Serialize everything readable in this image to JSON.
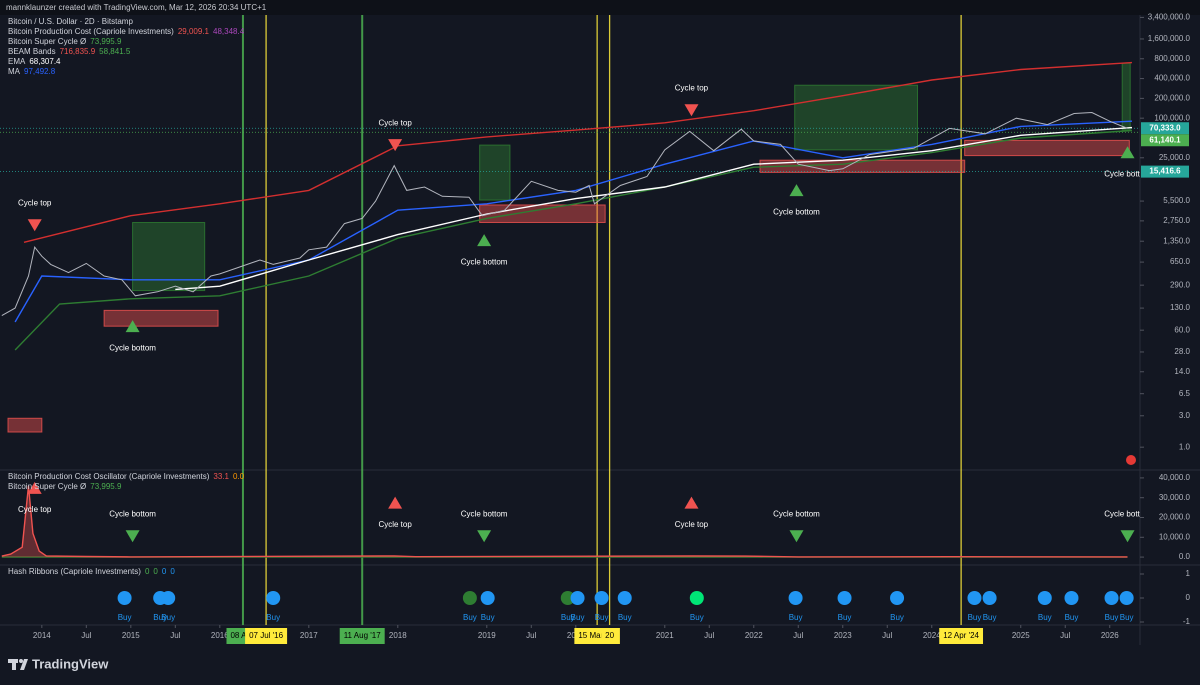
{
  "header": "mannklaunzer created with TradingView.com, Mar 12, 2026 20:34 UTC+1",
  "footer": {
    "brand": "TradingView"
  },
  "time_axis": {
    "xlim": [
      2013.53,
      2026.34
    ],
    "xticks": [
      2014,
      {
        "value": 2014.5,
        "label": "Jul"
      },
      2015,
      {
        "value": 2015.5,
        "label": "Jul"
      },
      2016,
      2017,
      2018,
      2019,
      {
        "value": 2019.5,
        "label": "Jul"
      },
      2020,
      2021,
      {
        "value": 2021.5,
        "label": "Jul"
      },
      2022,
      {
        "value": 2022.5,
        "label": "Jul"
      },
      2023,
      {
        "value": 2023.5,
        "label": "Jul"
      },
      2024,
      2025,
      {
        "value": 2025.5,
        "label": "Jul"
      },
      2026
    ],
    "markers": [
      {
        "x": 2016.26,
        "label": "08 Aug",
        "color": "#4caf50"
      },
      {
        "x": 2016.52,
        "label": "07 Jul '16",
        "color": "#ffeb3b"
      },
      {
        "x": 2017.6,
        "label": "11 Aug '17",
        "color": "#4caf50"
      },
      {
        "x": 2020.24,
        "label": "15 Mar '20",
        "color": "#ffeb3b"
      },
      {
        "x": 2020.38,
        "label": "20",
        "color": "#ffeb3b"
      },
      {
        "x": 2024.33,
        "label": "12 Apr '24",
        "color": "#ffeb3b"
      }
    ]
  },
  "chart_data": [
    {
      "type": "line",
      "log_scale": true,
      "legend": [
        {
          "name": "Bitcoin / U.S. Dollar · 2D · Bitstamp"
        },
        {
          "name": "Bitcoin Production Cost (Capriole Investments)",
          "readings": [
            "29,009.1",
            "48,348.4"
          ],
          "colors": [
            "#f05350",
            "#ab47bc"
          ]
        },
        {
          "name": "Bitcoin Super Cycle  Ø",
          "readings": [
            "73,995.9"
          ],
          "colors": [
            "#4caf50"
          ]
        },
        {
          "name": "BEAM Bands",
          "readings": [
            "716,835.9",
            "58,841.5"
          ],
          "colors": [
            "#f05350",
            "#4caf50"
          ]
        },
        {
          "name": "EMA",
          "readings": [
            "68,307.4"
          ],
          "colors": [
            "#ffffff"
          ]
        },
        {
          "name": "MA",
          "readings": [
            "97,492.8"
          ],
          "colors": [
            "#2962ff"
          ]
        }
      ],
      "ylim": [
        0.45,
        3700000
      ],
      "yticks": [
        {
          "value": 3400000,
          "label": "3,400,000.0"
        },
        {
          "value": 1600000,
          "label": "1,600,000.0"
        },
        {
          "value": 800000,
          "label": "800,000.0"
        },
        {
          "value": 400000,
          "label": "400,000.0"
        },
        {
          "value": 200000,
          "label": "200,000.0"
        },
        {
          "value": 100000,
          "label": "100,000.0"
        },
        {
          "value": 25000,
          "label": "25,000.0"
        },
        {
          "value": 5500,
          "label": "5,500.0"
        },
        {
          "value": 2750,
          "label": "2,750.0"
        },
        {
          "value": 1350,
          "label": "1,350.0"
        },
        {
          "value": 650,
          "label": "650.0"
        },
        {
          "value": 290,
          "label": "290.0"
        },
        {
          "value": 130,
          "label": "130.0"
        },
        {
          "value": 60,
          "label": "60.0"
        },
        {
          "value": 28,
          "label": "28.0"
        },
        {
          "value": 14,
          "label": "14.0"
        },
        {
          "value": 6.5,
          "label": "6.5"
        },
        {
          "value": 3,
          "label": "3.0"
        },
        {
          "value": 1,
          "label": "1.0"
        }
      ],
      "zones": [
        {
          "x0": 2015.02,
          "x1": 2015.83,
          "y0": 240,
          "y1": 2600,
          "color": "#2e7d32"
        },
        {
          "x0": 2018.92,
          "x1": 2019.26,
          "y0": 5700,
          "y1": 39000,
          "color": "#2e7d32"
        },
        {
          "x0": 2022.46,
          "x1": 2023.84,
          "y0": 33000,
          "y1": 317000,
          "color": "#2e7d32"
        },
        {
          "x0": 2026.14,
          "x1": 2026.23,
          "y0": 66000,
          "y1": 685000,
          "color": "#2e7d32"
        },
        {
          "x0": 2013.62,
          "x1": 2014.0,
          "y0": 1.7,
          "y1": 2.75,
          "color": "#f05350"
        },
        {
          "x0": 2014.7,
          "x1": 2015.98,
          "y0": 69,
          "y1": 120,
          "color": "#f05350"
        },
        {
          "x0": 2018.92,
          "x1": 2020.33,
          "y0": 2600,
          "y1": 4800,
          "color": "#f05350"
        },
        {
          "x0": 2022.07,
          "x1": 2024.37,
          "y0": 15000,
          "y1": 23000,
          "color": "#f05350"
        },
        {
          "x0": 2024.37,
          "x1": 2026.22,
          "y0": 27000,
          "y1": 46000,
          "color": "#f05350"
        }
      ],
      "series": [
        {
          "color": "#d32f2f",
          "x": [
            2013.8,
            2015,
            2016,
            2017,
            2018,
            2019,
            2020,
            2021,
            2022,
            2023,
            2024,
            2025,
            2026.25
          ],
          "values": [
            1300,
            3300,
            5000,
            8000,
            38000,
            52000,
            66000,
            85000,
            130000,
            220000,
            380000,
            550000,
            700000
          ]
        },
        {
          "color": "#2e7d32",
          "x": [
            2013.7,
            2014.2,
            2015,
            2016,
            2017,
            2018,
            2019,
            2020,
            2021,
            2022,
            2023,
            2024,
            2025,
            2026.25
          ],
          "values": [
            30,
            150,
            180,
            200,
            400,
            1500,
            3000,
            5000,
            9000,
            18000,
            20000,
            30000,
            50000,
            65000
          ]
        },
        {
          "color": "#2962ff",
          "x": [
            2013.7,
            2014,
            2015,
            2016,
            2017,
            2018,
            2019,
            2020,
            2021,
            2022,
            2023,
            2024,
            2025,
            2026.25
          ],
          "values": [
            80,
            400,
            350,
            350,
            700,
            4000,
            5000,
            8000,
            20000,
            45000,
            25000,
            40000,
            75000,
            90000
          ]
        },
        {
          "color": "#ffffff",
          "x": [
            2015.5,
            2016,
            2017,
            2018,
            2019,
            2020,
            2021,
            2022,
            2023,
            2024,
            2025,
            2026.25
          ],
          "values": [
            250,
            280,
            700,
            1700,
            3500,
            6000,
            9000,
            20000,
            23000,
            32000,
            55000,
            72000
          ]
        },
        {
          "color": "#b2b5be",
          "x": [
            2013.55,
            2013.7,
            2013.85,
            2013.92,
            2014.0,
            2014.1,
            2014.3,
            2014.5,
            2014.7,
            2014.9,
            2015.05,
            2015.3,
            2015.5,
            2015.7,
            2015.9,
            2016.0,
            2016.45,
            2016.6,
            2016.9,
            2017.0,
            2017.2,
            2017.4,
            2017.6,
            2017.75,
            2017.96,
            2018.1,
            2018.3,
            2018.5,
            2018.8,
            2018.95,
            2019.2,
            2019.5,
            2019.8,
            2020.0,
            2020.15,
            2020.21,
            2020.5,
            2020.8,
            2021.0,
            2021.28,
            2021.55,
            2021.86,
            2022.0,
            2022.3,
            2022.5,
            2022.85,
            2023.0,
            2023.3,
            2023.8,
            2024.2,
            2024.6,
            2024.95,
            2025.3,
            2025.6,
            2025.8,
            2026.0,
            2026.2
          ],
          "values": [
            100,
            130,
            400,
            1100,
            800,
            600,
            450,
            620,
            400,
            350,
            200,
            230,
            280,
            230,
            400,
            430,
            700,
            600,
            750,
            1000,
            1100,
            2500,
            3000,
            5500,
            19000,
            8000,
            9000,
            6500,
            6300,
            3300,
            4000,
            11000,
            8000,
            7500,
            9500,
            5000,
            9500,
            13000,
            33000,
            63000,
            32000,
            68000,
            45000,
            40000,
            20000,
            16000,
            17000,
            28000,
            35000,
            70000,
            58000,
            100000,
            80000,
            118000,
            122000,
            90000,
            70000
          ]
        }
      ],
      "annotations": [
        {
          "text": "Cycle top",
          "x": 2013.92,
          "y": 2360,
          "marker": "down",
          "color": "#f05350"
        },
        {
          "text": "Cycle bottom",
          "x": 2015.02,
          "y": 69,
          "marker": "up",
          "color": "#4caf50"
        },
        {
          "text": "Cycle top",
          "x": 2017.97,
          "y": 38900,
          "marker": "down",
          "color": "#f05350"
        },
        {
          "text": "Cycle bottom",
          "x": 2018.97,
          "y": 1400,
          "marker": "up",
          "color": "#4caf50"
        },
        {
          "text": "Cycle top",
          "x": 2021.3,
          "y": 132000,
          "marker": "down",
          "color": "#f05350"
        },
        {
          "text": "Cycle bottom",
          "x": 2022.48,
          "y": 8050,
          "marker": "up",
          "color": "#4caf50"
        },
        {
          "text": "Cycle bottom",
          "x": 2026.2,
          "y": 30400,
          "marker": "up",
          "color": "#4caf50"
        }
      ],
      "price_labels": [
        {
          "value": 70333,
          "label": "70,333.0",
          "color": "#26a69a"
        },
        {
          "value": 61140.1,
          "label": "61,140.1",
          "color": "#4caf50"
        },
        {
          "value": 15416.6,
          "label": "15,416.6",
          "color": "#26a69a"
        }
      ]
    },
    {
      "type": "area",
      "legend": [
        {
          "name": "Bitcoin Production Cost Oscillator (Capriole Investments)",
          "readings": [
            "33.1",
            "0.0"
          ],
          "colors": [
            "#f05350",
            "#ff9800"
          ]
        },
        {
          "name": "Bitcoin Super Cycle  Ø",
          "readings": [
            "73,995.9"
          ],
          "colors": [
            "#4caf50"
          ]
        }
      ],
      "ylim": [
        -4000,
        44000
      ],
      "yticks": [
        {
          "value": 40000,
          "label": "40,000.0"
        },
        {
          "value": 30000,
          "label": "30,000.0"
        },
        {
          "value": 20000,
          "label": "20,000.0"
        },
        {
          "value": 10000,
          "label": "10,000.0"
        },
        {
          "value": 0,
          "label": "0.0"
        }
      ],
      "series": [
        {
          "color": "#2e7d32",
          "x": [
            2013.55,
            2026.2
          ],
          "values": [
            0,
            0
          ]
        },
        {
          "color": "#f05350",
          "x": [
            2013.55,
            2013.65,
            2013.78,
            2013.85,
            2013.9,
            2013.97,
            2014.05,
            2014.5,
            2015,
            2017.96,
            2018.2,
            2021.3,
            2021.9,
            2022.5,
            2024.2,
            2026.2
          ],
          "values": [
            500,
            1500,
            5000,
            36000,
            12000,
            3000,
            600,
            300,
            100,
            600,
            200,
            600,
            500,
            100,
            200,
            100
          ]
        }
      ],
      "annotations": [
        {
          "text": "Cycle top",
          "x": 2013.92,
          "y": 35000,
          "marker": "up",
          "color": "#f05350"
        },
        {
          "text": "Cycle bottom",
          "x": 2015.02,
          "y": 10500,
          "marker": "down",
          "color": "#4caf50"
        },
        {
          "text": "Cycle top",
          "x": 2017.97,
          "y": 27500,
          "marker": "up",
          "color": "#f05350"
        },
        {
          "text": "Cycle bottom",
          "x": 2018.97,
          "y": 10500,
          "marker": "down",
          "color": "#4caf50"
        },
        {
          "text": "Cycle top",
          "x": 2021.3,
          "y": 27500,
          "marker": "up",
          "color": "#f05350"
        },
        {
          "text": "Cycle bottom",
          "x": 2022.48,
          "y": 10500,
          "marker": "down",
          "color": "#4caf50"
        },
        {
          "text": "Cycle bottom",
          "x": 2026.2,
          "y": 10500,
          "marker": "down",
          "color": "#4caf50"
        }
      ]
    },
    {
      "type": "scatter",
      "legend": [
        {
          "name": "Hash Ribbons (Capriole Investments)",
          "readings": [
            "0",
            "0",
            "0",
            "0"
          ],
          "colors": [
            "#4caf50",
            "#4caf50",
            "#2196f3",
            "#2196f3"
          ]
        }
      ],
      "ylim": [
        -1.125,
        1.375
      ],
      "yticks": [
        1,
        0,
        -1
      ],
      "signals": [
        {
          "x": 2014.93,
          "value": 0,
          "label": "Buy",
          "color": "#2196f3"
        },
        {
          "x": 2015.33,
          "value": 0,
          "label": "Buy",
          "color": "#2196f3"
        },
        {
          "x": 2015.42,
          "value": 0,
          "label": "Buy",
          "color": "#2196f3"
        },
        {
          "x": 2016.6,
          "value": 0,
          "label": "Buy",
          "color": "#2196f3"
        },
        {
          "x": 2018.81,
          "value": 0,
          "label": "Buy",
          "color": "#2e7d32"
        },
        {
          "x": 2019.01,
          "value": 0,
          "label": "Buy",
          "color": "#2196f3"
        },
        {
          "x": 2019.91,
          "value": 0,
          "label": "Buy",
          "color": "#2e7d32"
        },
        {
          "x": 2020.02,
          "value": 0,
          "label": "Buy",
          "color": "#2196f3"
        },
        {
          "x": 2020.29,
          "value": 0,
          "label": "Buy",
          "color": "#2196f3"
        },
        {
          "x": 2020.55,
          "value": 0,
          "label": "Buy",
          "color": "#2196f3"
        },
        {
          "x": 2021.36,
          "value": 0,
          "label": "Buy",
          "color": "#00e676"
        },
        {
          "x": 2022.47,
          "value": 0,
          "label": "Buy",
          "color": "#2196f3"
        },
        {
          "x": 2023.02,
          "value": 0,
          "label": "Buy",
          "color": "#2196f3"
        },
        {
          "x": 2023.61,
          "value": 0,
          "label": "Buy",
          "color": "#2196f3"
        },
        {
          "x": 2024.48,
          "value": 0,
          "label": "Buy",
          "color": "#2196f3"
        },
        {
          "x": 2024.65,
          "value": 0,
          "label": "Buy",
          "color": "#2196f3"
        },
        {
          "x": 2025.27,
          "value": 0,
          "label": "Buy",
          "color": "#2196f3"
        },
        {
          "x": 2025.57,
          "value": 0,
          "label": "Buy",
          "color": "#2196f3"
        },
        {
          "x": 2026.02,
          "value": 0,
          "label": "Buy",
          "color": "#2196f3"
        },
        {
          "x": 2026.19,
          "value": 0,
          "label": "Buy",
          "color": "#2196f3"
        }
      ]
    }
  ]
}
